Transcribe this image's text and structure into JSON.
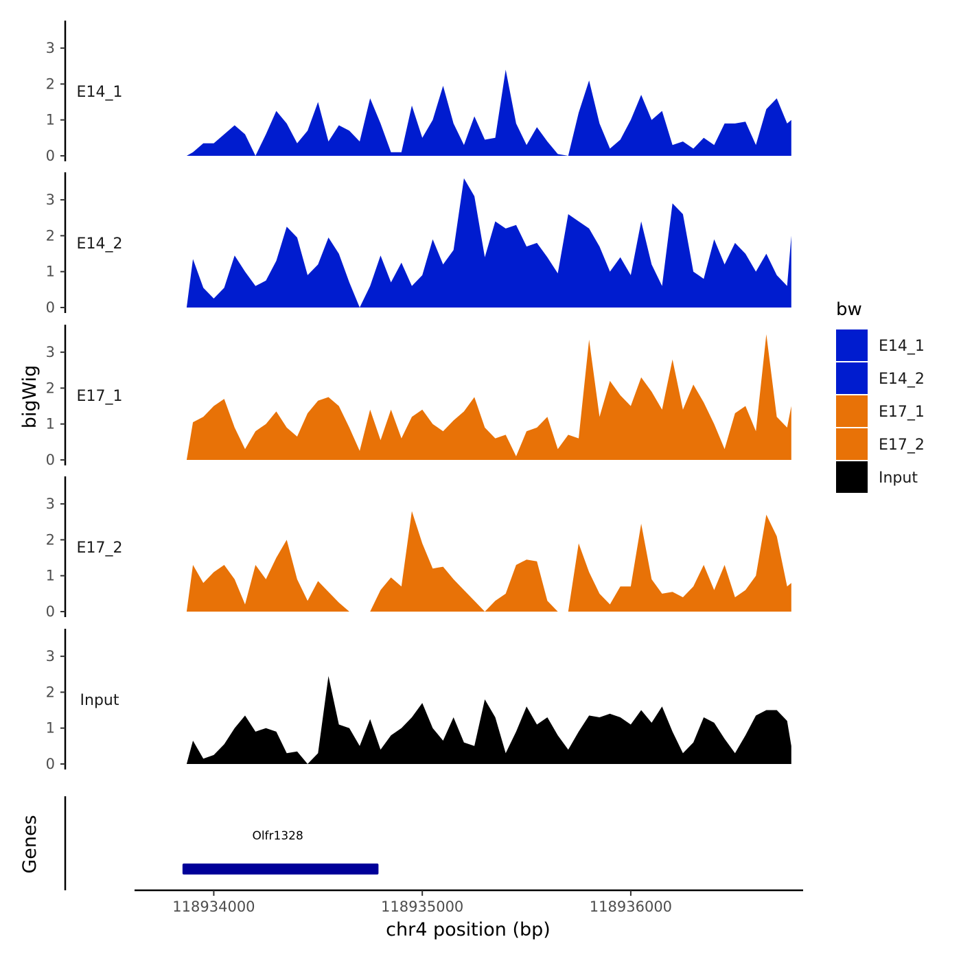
{
  "chart_data": {
    "type": "area",
    "y_axis_title": "bigWig",
    "x_axis_title": "chr4 position (bp)",
    "genes_axis_title": "Genes",
    "x_range": [
      118933620,
      118936820
    ],
    "x_ticks": [
      {
        "value": 118934000,
        "label": "118934000"
      },
      {
        "value": 118935000,
        "label": "118935000"
      },
      {
        "value": 118936000,
        "label": "118936000"
      }
    ],
    "y_range": [
      0,
      3.7
    ],
    "y_ticks": [
      {
        "value": 0,
        "label": "0"
      },
      {
        "value": 1,
        "label": "1"
      },
      {
        "value": 2,
        "label": "2"
      },
      {
        "value": 3,
        "label": "3"
      }
    ],
    "legend": {
      "title": "bw",
      "entries": [
        {
          "label": "E14_1",
          "color": "#001ccf"
        },
        {
          "label": "E14_2",
          "color": "#001ccf"
        },
        {
          "label": "E17_1",
          "color": "#e87207"
        },
        {
          "label": "E17_2",
          "color": "#e87207"
        },
        {
          "label": "Input",
          "color": "#000000"
        }
      ]
    },
    "x": [
      118933870,
      118933900,
      118933950,
      118934000,
      118934050,
      118934100,
      118934150,
      118934200,
      118934250,
      118934300,
      118934350,
      118934400,
      118934450,
      118934500,
      118934550,
      118934600,
      118934650,
      118934700,
      118934750,
      118934800,
      118934850,
      118934900,
      118934950,
      118935000,
      118935050,
      118935100,
      118935150,
      118935200,
      118935250,
      118935300,
      118935350,
      118935400,
      118935450,
      118935500,
      118935550,
      118935600,
      118935650,
      118935700,
      118935750,
      118935800,
      118935850,
      118935900,
      118935950,
      118936000,
      118936050,
      118936100,
      118936150,
      118936200,
      118936250,
      118936300,
      118936350,
      118936400,
      118936450,
      118936500,
      118936550,
      118936600,
      118936650,
      118936700,
      118936750,
      118936770
    ],
    "series": [
      {
        "name": "E14_1",
        "color": "#001ccf",
        "values": [
          0,
          0.1,
          0.35,
          0.35,
          0.6,
          0.85,
          0.6,
          0,
          0.6,
          1.25,
          0.9,
          0.35,
          0.7,
          1.5,
          0.4,
          0.85,
          0.7,
          0.4,
          1.6,
          0.9,
          0.1,
          0.1,
          1.4,
          0.5,
          1.0,
          1.95,
          0.9,
          0.3,
          1.1,
          0.45,
          0.5,
          2.4,
          0.9,
          0.3,
          0.8,
          0.4,
          0.05,
          0,
          1.2,
          2.1,
          0.9,
          0.2,
          0.45,
          1.0,
          1.7,
          1.0,
          1.25,
          0.3,
          0.4,
          0.2,
          0.5,
          0.3,
          0.9,
          0.9,
          0.95,
          0.3,
          1.3,
          1.6,
          0.9,
          1.0
        ]
      },
      {
        "name": "E14_2",
        "color": "#001ccf",
        "values": [
          0,
          1.35,
          0.55,
          0.25,
          0.55,
          1.45,
          1.0,
          0.6,
          0.75,
          1.3,
          2.25,
          1.95,
          0.9,
          1.2,
          1.95,
          1.5,
          0.7,
          0,
          0.6,
          1.45,
          0.7,
          1.25,
          0.6,
          0.9,
          1.9,
          1.2,
          1.6,
          3.6,
          3.1,
          1.4,
          2.4,
          2.2,
          2.3,
          1.7,
          1.8,
          1.4,
          0.95,
          2.6,
          2.4,
          2.2,
          1.7,
          1.0,
          1.4,
          0.9,
          2.4,
          1.2,
          0.6,
          2.9,
          2.6,
          1.0,
          0.8,
          1.9,
          1.2,
          1.8,
          1.5,
          1.0,
          1.5,
          0.9,
          0.6,
          2.0
        ]
      },
      {
        "name": "E17_1",
        "color": "#e87207",
        "values": [
          0,
          1.05,
          1.2,
          1.5,
          1.7,
          0.9,
          0.3,
          0.8,
          1.0,
          1.35,
          0.9,
          0.65,
          1.3,
          1.65,
          1.75,
          1.5,
          0.9,
          0.25,
          1.4,
          0.55,
          1.4,
          0.6,
          1.2,
          1.4,
          1.0,
          0.8,
          1.1,
          1.35,
          1.75,
          0.9,
          0.6,
          0.7,
          0.1,
          0.8,
          0.9,
          1.2,
          0.3,
          0.7,
          0.6,
          3.35,
          1.2,
          2.2,
          1.8,
          1.5,
          2.3,
          1.9,
          1.4,
          2.8,
          1.4,
          2.1,
          1.6,
          1.0,
          0.3,
          1.3,
          1.5,
          0.8,
          3.5,
          1.2,
          0.9,
          1.5
        ]
      },
      {
        "name": "E17_2",
        "color": "#e87207",
        "values": [
          0,
          1.3,
          0.8,
          1.1,
          1.3,
          0.9,
          0.2,
          1.3,
          0.9,
          1.5,
          2.0,
          0.9,
          0.3,
          0.85,
          0.55,
          0.25,
          0,
          0,
          0,
          0.6,
          0.95,
          0.7,
          2.8,
          1.9,
          1.2,
          1.25,
          0.9,
          0.6,
          0.3,
          0,
          0.3,
          0.5,
          1.3,
          1.45,
          1.4,
          0.3,
          0,
          0,
          1.9,
          1.1,
          0.5,
          0.2,
          0.7,
          0.7,
          2.45,
          0.9,
          0.5,
          0.55,
          0.4,
          0.7,
          1.3,
          0.6,
          1.3,
          0.4,
          0.6,
          1.0,
          2.7,
          2.1,
          0.7,
          0.8
        ]
      },
      {
        "name": "Input",
        "color": "#000000",
        "values": [
          0,
          0.65,
          0.15,
          0.25,
          0.55,
          1.0,
          1.35,
          0.9,
          1.0,
          0.9,
          0.3,
          0.35,
          0,
          0.3,
          2.45,
          1.1,
          1.0,
          0.5,
          1.25,
          0.4,
          0.8,
          1.0,
          1.3,
          1.7,
          1.0,
          0.65,
          1.3,
          0.6,
          0.5,
          1.8,
          1.3,
          0.3,
          0.9,
          1.6,
          1.1,
          1.3,
          0.8,
          0.4,
          0.9,
          1.35,
          1.3,
          1.4,
          1.3,
          1.1,
          1.5,
          1.15,
          1.6,
          0.9,
          0.3,
          0.6,
          1.3,
          1.15,
          0.7,
          0.3,
          0.8,
          1.35,
          1.5,
          1.5,
          1.2,
          0.5
        ]
      }
    ],
    "genes": [
      {
        "name": "Olfr1328",
        "start": 118933850,
        "end": 118934790
      }
    ]
  }
}
